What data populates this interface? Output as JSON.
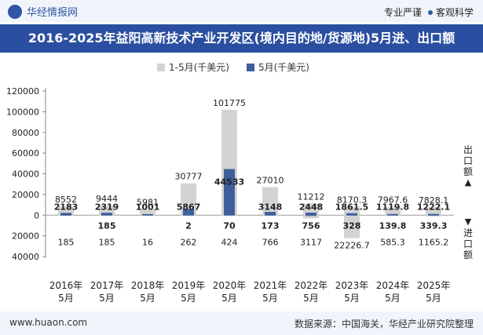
{
  "header": {
    "brand": "华经情报网",
    "tag1": "专业严谨",
    "tag2": "客观科学",
    "title": "2016-2025年益阳高新技术产业开发区(境内目的地/货源地)5月进、出口额"
  },
  "side_labels": {
    "export": "出口额",
    "import": "进口额"
  },
  "footer": {
    "url": "www.huaon.com",
    "source": "数据来源：中国海关，华经产业研究院整理"
  },
  "colors": {
    "ytd": "#d3d3d3",
    "may": "#3e5f9c"
  },
  "chart_data": {
    "type": "bar",
    "title": "2016-2025年益阳高新技术产业开发区(境内目的地/货源地)5月进、出口额",
    "categories": [
      "2016年5月",
      "2017年5月",
      "2018年5月",
      "2019年5月",
      "2020年5月",
      "2021年5月",
      "2022年5月",
      "2023年5月",
      "2024年5月",
      "2025年5月"
    ],
    "ylim": [
      -40000,
      120000
    ],
    "yticks": [
      -40000,
      -20000,
      0,
      20000,
      40000,
      60000,
      80000,
      100000,
      120000
    ],
    "ytick_labels": [
      "40000",
      "20000",
      "0",
      "20000",
      "40000",
      "60000",
      "80000",
      "100000",
      "120000"
    ],
    "series": [
      {
        "name": "1-5月(千美元)",
        "export_values": [
          8552,
          9444,
          5981,
          30777,
          101775,
          27010,
          11212,
          8170.3,
          7967.6,
          7828.1
        ],
        "export_labels": [
          "8552",
          "9444",
          "5981",
          "30777",
          "101775",
          "27010",
          "11212",
          "8170.3",
          "7967.6",
          "7828.1"
        ],
        "import_values": [
          185,
          185,
          16,
          262,
          424,
          766,
          3117,
          22226.7,
          585.3,
          1165.2
        ],
        "import_labels": [
          "185",
          "185",
          "16",
          "262",
          "424",
          "766",
          "3117",
          "22226.7",
          "585.3",
          "1165.2"
        ]
      },
      {
        "name": "5月(千美元)",
        "export_values": [
          2183,
          2319,
          1001,
          5867,
          44533,
          3148,
          2448,
          1861.5,
          1119.8,
          1222.1
        ],
        "export_labels": [
          "2183",
          "2319",
          "1001",
          "5867",
          "44533",
          "3148",
          "2448",
          "1861.5",
          "1119.8",
          "1222.1"
        ],
        "import_values": [
          0,
          185,
          0,
          2,
          70,
          173,
          756,
          328,
          139.8,
          339.3
        ],
        "import_labels": [
          "",
          "185",
          "",
          "2",
          "70",
          "173",
          "756",
          "328",
          "139.8",
          "339.3"
        ]
      }
    ]
  }
}
